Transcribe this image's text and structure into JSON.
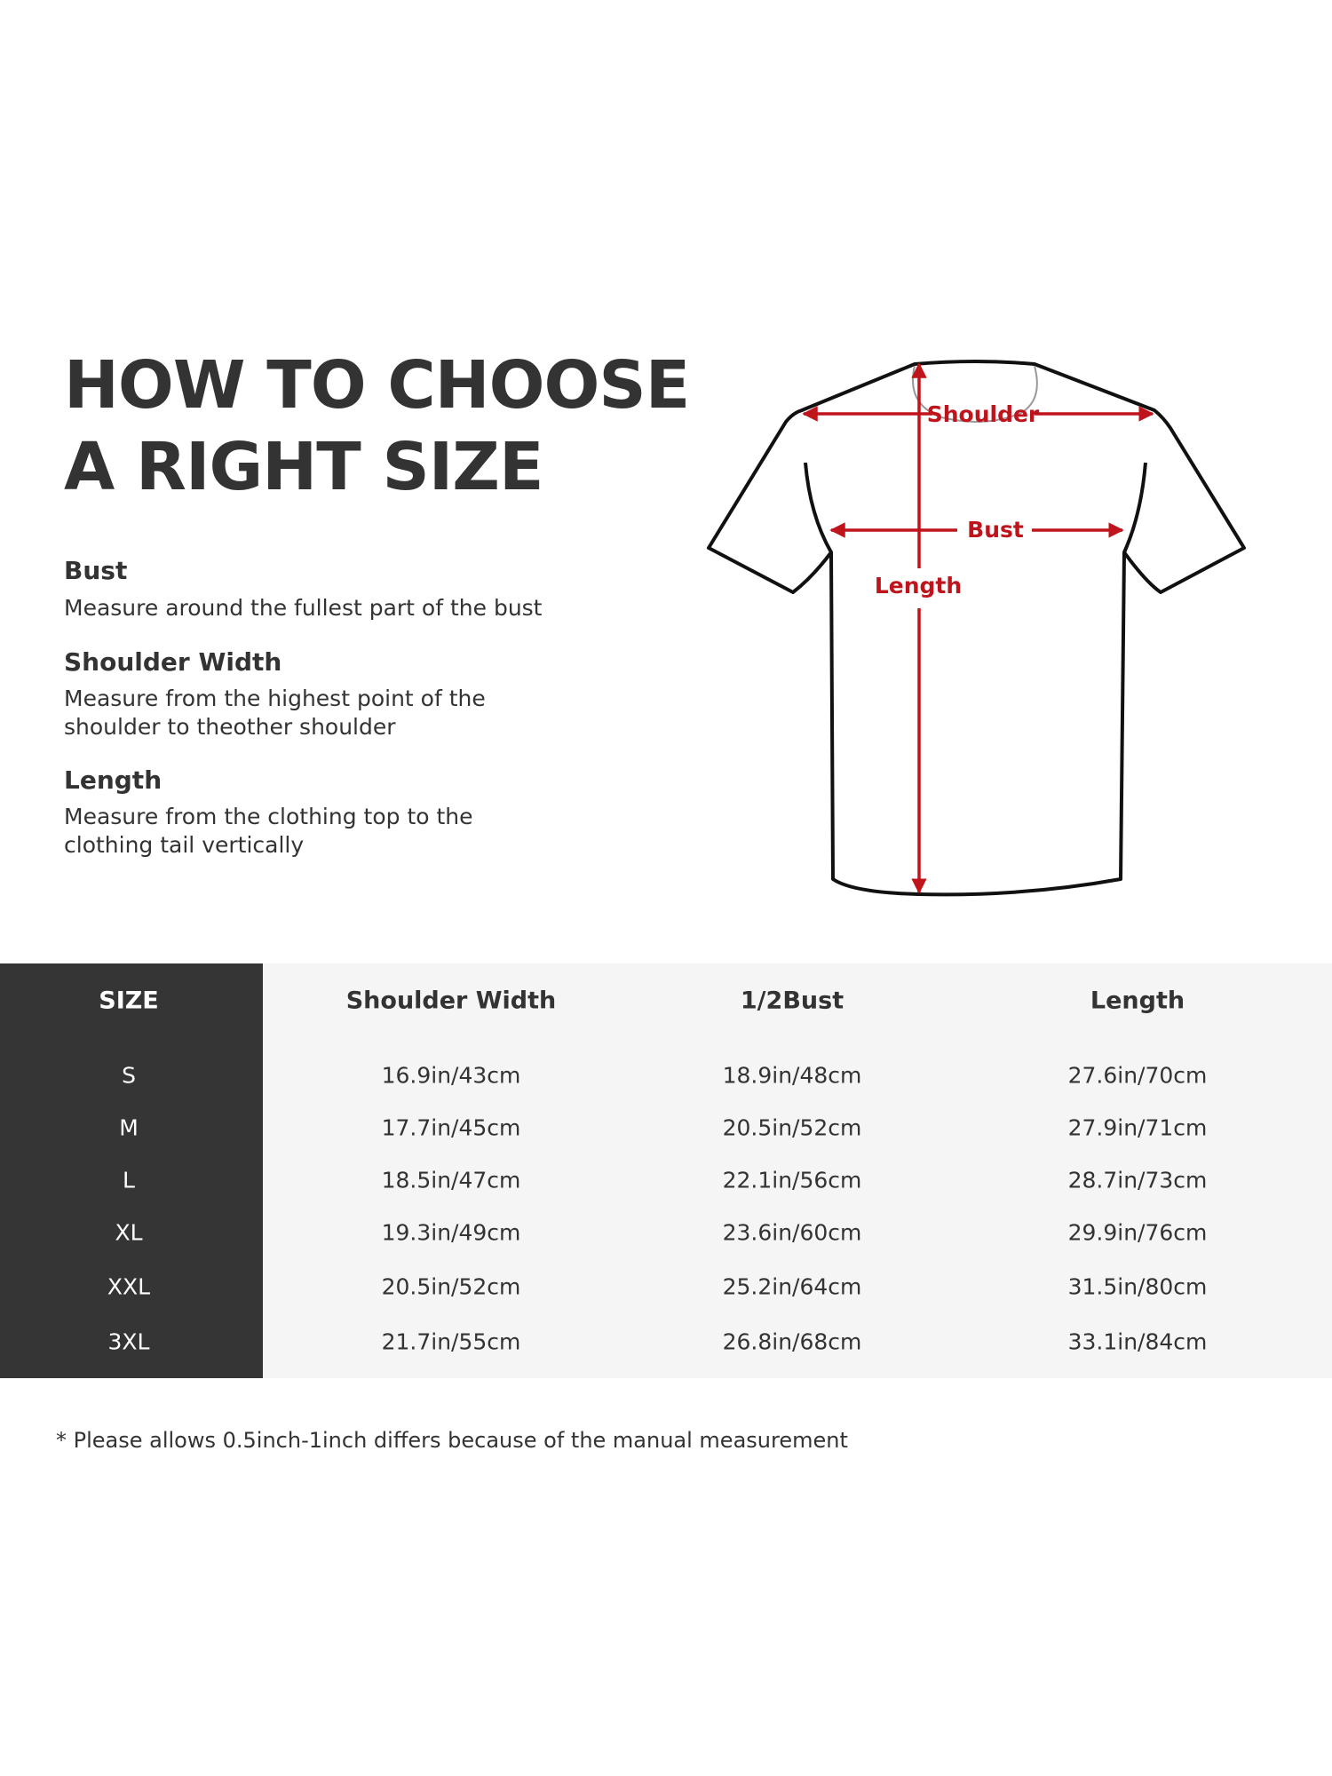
{
  "title_lines": [
    "HOW TO CHOOSE",
    "A RIGHT SIZE"
  ],
  "guides": [
    {
      "heading": "Bust",
      "description": [
        "Measure around the fullest part of the bust"
      ]
    },
    {
      "heading": "Shoulder Width",
      "description": [
        "Measure from the highest point of the",
        "shoulder to theother shoulder"
      ]
    },
    {
      "heading": "Length",
      "description": [
        "Measure from the clothing top to the",
        "clothing tail vertically"
      ]
    }
  ],
  "diagram": {
    "labels": {
      "shoulder": "Shoulder",
      "bust": "Bust",
      "length": "Length"
    },
    "arrow_color": "#c0141c"
  },
  "table": {
    "headers": [
      "SIZE",
      "Shoulder Width",
      "1/2Bust",
      "Length"
    ],
    "rows": [
      [
        "S",
        "16.9in/43cm",
        "18.9in/48cm",
        "27.6in/70cm"
      ],
      [
        "M",
        "17.7in/45cm",
        "20.5in/52cm",
        "27.9in/71cm"
      ],
      [
        "L",
        "18.5in/47cm",
        "22.1in/56cm",
        "28.7in/73cm"
      ],
      [
        "XL",
        "19.3in/49cm",
        "23.6in/60cm",
        "29.9in/76cm"
      ],
      [
        "XXL",
        "20.5in/52cm",
        "25.2in/64cm",
        "31.5in/80cm"
      ],
      [
        "3XL",
        "21.7in/55cm",
        "26.8in/68cm",
        "33.1in/84cm"
      ]
    ]
  },
  "footnote": "* Please allows 0.5inch-1inch differs because of the  manual measurement"
}
